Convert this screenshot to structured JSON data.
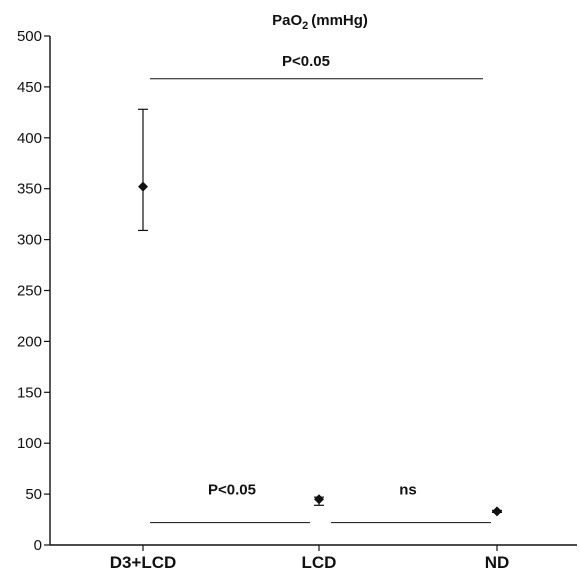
{
  "chart_data": {
    "type": "scatter",
    "title": "PaO",
    "title_subscript": "2",
    "title_unit": "(mmHg)",
    "categories": [
      "D3+LCD",
      "LCD",
      "ND"
    ],
    "values": [
      352,
      45,
      33
    ],
    "error_low": [
      309,
      39,
      32
    ],
    "error_high": [
      428,
      47,
      34
    ],
    "ylim": [
      0,
      500
    ],
    "yticks": [
      0,
      50,
      100,
      150,
      200,
      250,
      300,
      350,
      400,
      450,
      500
    ],
    "ytick_labels": [
      "0",
      "50",
      "100",
      "150",
      "200",
      "250",
      "300",
      "350",
      "400",
      "450",
      "500"
    ],
    "grid": false,
    "annotations": [
      {
        "text": "P<0.05",
        "from": 0,
        "to": 2,
        "y": 458
      },
      {
        "text": "P<0.05",
        "from": 0,
        "to": 1,
        "y": 22
      },
      {
        "text": "ns",
        "from": 1,
        "to": 2,
        "y": 22
      }
    ]
  }
}
